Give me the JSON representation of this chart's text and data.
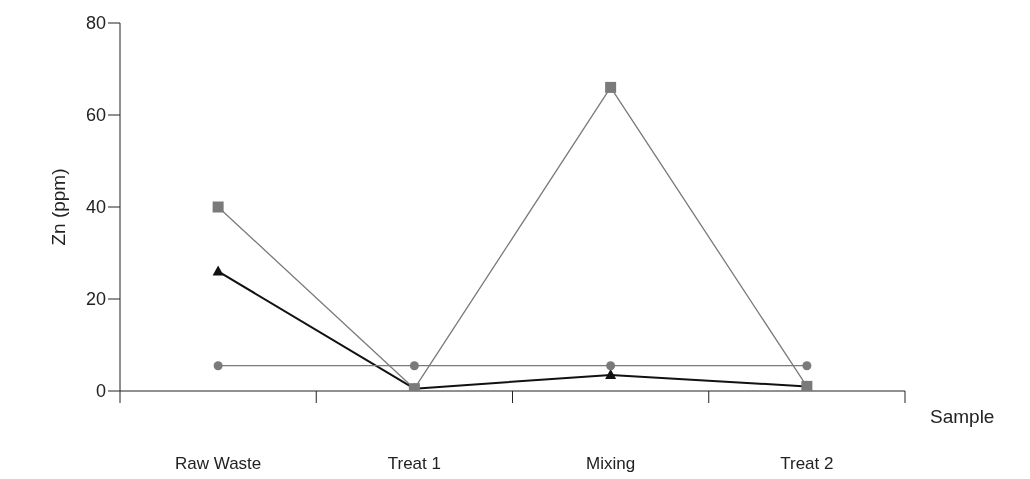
{
  "chart_data": {
    "type": "line",
    "xlabel": "Sample",
    "ylabel": "Zn (ppm)",
    "categories": [
      "Raw Waste",
      "Treat 1",
      "Mixing",
      "Treat 2"
    ],
    "ylim": [
      0,
      80
    ],
    "yticks": [
      0,
      20,
      40,
      60,
      80
    ],
    "grid": false,
    "legend": false,
    "series": [
      {
        "color": "#111111",
        "marker": "triangle",
        "values": [
          26,
          0.5,
          3.5,
          1
        ]
      },
      {
        "color": "#7a7a7a",
        "marker": "circle",
        "values": [
          5.5,
          5.5,
          5.5,
          5.5
        ]
      },
      {
        "color": "#7a7a7a",
        "marker": "square",
        "values": [
          40,
          0.5,
          66,
          1
        ]
      }
    ]
  }
}
